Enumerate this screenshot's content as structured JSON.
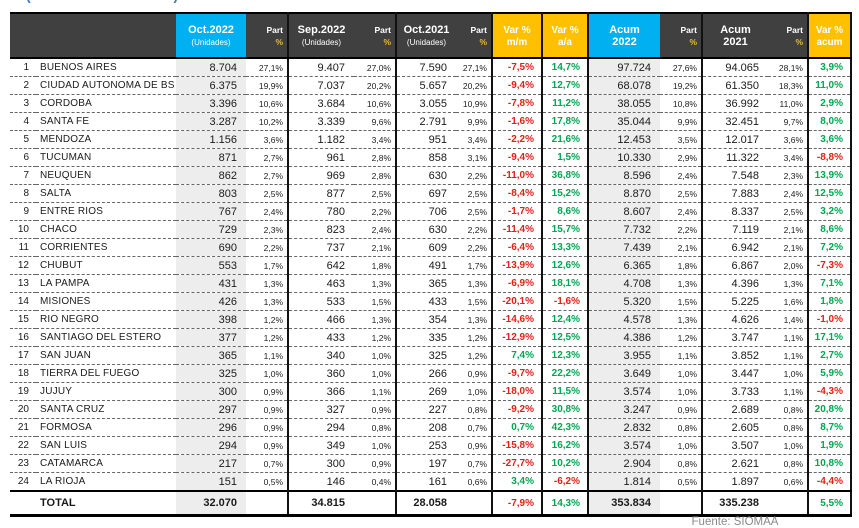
{
  "title_fragment": "( . . . . . . . . . . . . . . )",
  "source_label": "Fuente: SIOMAA",
  "colors": {
    "accent_cyan": "#00B0F0",
    "accent_yellow": "#FFC000",
    "header_dark": "#404040",
    "negative_red": "#E0201B",
    "positive_green": "#00A651",
    "column_shade": "#EDEDED"
  },
  "header": {
    "oct2022": {
      "line1": "Oct.2022",
      "line2": "(Unidades)"
    },
    "sep2022": {
      "line1": "Sep.2022",
      "line2": "(Unidades)"
    },
    "oct2021": {
      "line1": "Oct.2021",
      "line2": "(Unidades)"
    },
    "part": {
      "line1": "Part",
      "line2": "%"
    },
    "var_mm": {
      "line1": "Var %",
      "line2": "m/m"
    },
    "var_aa": {
      "line1": "Var %",
      "line2": "a/a"
    },
    "acum2022": {
      "line1": "Acum",
      "line2": "2022"
    },
    "acum2021": {
      "line1": "Acum",
      "line2": "2021"
    },
    "var_acum": {
      "line1": "Var %",
      "line2": "acum"
    }
  },
  "rows": [
    {
      "rank": "1",
      "name": "BUENOS AIRES",
      "oct22": "8.704",
      "oct22_part": "27,1%",
      "sep22": "9.407",
      "sep22_part": "27,0%",
      "oct21": "7.590",
      "oct21_part": "27,1%",
      "var_mm": "-7,5%",
      "var_aa": "14,7%",
      "acum22": "97.724",
      "acum22_part": "27,6%",
      "acum21": "94.065",
      "acum21_part": "28,1%",
      "var_acum": "3,9%"
    },
    {
      "rank": "2",
      "name": "CIUDAD AUTONOMA DE BS AS",
      "oct22": "6.375",
      "oct22_part": "19,9%",
      "sep22": "7.037",
      "sep22_part": "20,2%",
      "oct21": "5.657",
      "oct21_part": "20,2%",
      "var_mm": "-9,4%",
      "var_aa": "12,7%",
      "acum22": "68.078",
      "acum22_part": "19,2%",
      "acum21": "61.350",
      "acum21_part": "18,3%",
      "var_acum": "11,0%"
    },
    {
      "rank": "3",
      "name": "CORDOBA",
      "oct22": "3.396",
      "oct22_part": "10,6%",
      "sep22": "3.684",
      "sep22_part": "10,6%",
      "oct21": "3.055",
      "oct21_part": "10,9%",
      "var_mm": "-7,8%",
      "var_aa": "11,2%",
      "acum22": "38.055",
      "acum22_part": "10,8%",
      "acum21": "36.992",
      "acum21_part": "11,0%",
      "var_acum": "2,9%"
    },
    {
      "rank": "4",
      "name": "SANTA FE",
      "oct22": "3.287",
      "oct22_part": "10,2%",
      "sep22": "3.339",
      "sep22_part": "9,6%",
      "oct21": "2.791",
      "oct21_part": "9,9%",
      "var_mm": "-1,6%",
      "var_aa": "17,8%",
      "acum22": "35.044",
      "acum22_part": "9,9%",
      "acum21": "32.451",
      "acum21_part": "9,7%",
      "var_acum": "8,0%"
    },
    {
      "rank": "5",
      "name": "MENDOZA",
      "oct22": "1.156",
      "oct22_part": "3,6%",
      "sep22": "1.182",
      "sep22_part": "3,4%",
      "oct21": "951",
      "oct21_part": "3,4%",
      "var_mm": "-2,2%",
      "var_aa": "21,6%",
      "acum22": "12.453",
      "acum22_part": "3,5%",
      "acum21": "12.017",
      "acum21_part": "3,6%",
      "var_acum": "3,6%"
    },
    {
      "rank": "6",
      "name": "TUCUMAN",
      "oct22": "871",
      "oct22_part": "2,7%",
      "sep22": "961",
      "sep22_part": "2,8%",
      "oct21": "858",
      "oct21_part": "3,1%",
      "var_mm": "-9,4%",
      "var_aa": "1,5%",
      "acum22": "10.330",
      "acum22_part": "2,9%",
      "acum21": "11.322",
      "acum21_part": "3,4%",
      "var_acum": "-8,8%"
    },
    {
      "rank": "7",
      "name": "NEUQUEN",
      "oct22": "862",
      "oct22_part": "2,7%",
      "sep22": "969",
      "sep22_part": "2,8%",
      "oct21": "630",
      "oct21_part": "2,2%",
      "var_mm": "-11,0%",
      "var_aa": "36,8%",
      "acum22": "8.596",
      "acum22_part": "2,4%",
      "acum21": "7.548",
      "acum21_part": "2,3%",
      "var_acum": "13,9%"
    },
    {
      "rank": "8",
      "name": "SALTA",
      "oct22": "803",
      "oct22_part": "2,5%",
      "sep22": "877",
      "sep22_part": "2,5%",
      "oct21": "697",
      "oct21_part": "2,5%",
      "var_mm": "-8,4%",
      "var_aa": "15,2%",
      "acum22": "8.870",
      "acum22_part": "2,5%",
      "acum21": "7.883",
      "acum21_part": "2,4%",
      "var_acum": "12,5%"
    },
    {
      "rank": "9",
      "name": "ENTRE RIOS",
      "oct22": "767",
      "oct22_part": "2,4%",
      "sep22": "780",
      "sep22_part": "2,2%",
      "oct21": "706",
      "oct21_part": "2,5%",
      "var_mm": "-1,7%",
      "var_aa": "8,6%",
      "acum22": "8.607",
      "acum22_part": "2,4%",
      "acum21": "8.337",
      "acum21_part": "2,5%",
      "var_acum": "3,2%"
    },
    {
      "rank": "10",
      "name": "CHACO",
      "oct22": "729",
      "oct22_part": "2,3%",
      "sep22": "823",
      "sep22_part": "2,4%",
      "oct21": "630",
      "oct21_part": "2,2%",
      "var_mm": "-11,4%",
      "var_aa": "15,7%",
      "acum22": "7.732",
      "acum22_part": "2,2%",
      "acum21": "7.119",
      "acum21_part": "2,1%",
      "var_acum": "8,6%"
    },
    {
      "rank": "11",
      "name": "CORRIENTES",
      "oct22": "690",
      "oct22_part": "2,2%",
      "sep22": "737",
      "sep22_part": "2,1%",
      "oct21": "609",
      "oct21_part": "2,2%",
      "var_mm": "-6,4%",
      "var_aa": "13,3%",
      "acum22": "7.439",
      "acum22_part": "2,1%",
      "acum21": "6.942",
      "acum21_part": "2,1%",
      "var_acum": "7,2%"
    },
    {
      "rank": "12",
      "name": "CHUBUT",
      "oct22": "553",
      "oct22_part": "1,7%",
      "sep22": "642",
      "sep22_part": "1,8%",
      "oct21": "491",
      "oct21_part": "1,7%",
      "var_mm": "-13,9%",
      "var_aa": "12,6%",
      "acum22": "6.365",
      "acum22_part": "1,8%",
      "acum21": "6.867",
      "acum21_part": "2,0%",
      "var_acum": "-7,3%"
    },
    {
      "rank": "13",
      "name": "LA PAMPA",
      "oct22": "431",
      "oct22_part": "1,3%",
      "sep22": "463",
      "sep22_part": "1,3%",
      "oct21": "365",
      "oct21_part": "1,3%",
      "var_mm": "-6,9%",
      "var_aa": "18,1%",
      "acum22": "4.708",
      "acum22_part": "1,3%",
      "acum21": "4.396",
      "acum21_part": "1,3%",
      "var_acum": "7,1%"
    },
    {
      "rank": "14",
      "name": "MISIONES",
      "oct22": "426",
      "oct22_part": "1,3%",
      "sep22": "533",
      "sep22_part": "1,5%",
      "oct21": "433",
      "oct21_part": "1,5%",
      "var_mm": "-20,1%",
      "var_aa": "-1,6%",
      "acum22": "5.320",
      "acum22_part": "1,5%",
      "acum21": "5.225",
      "acum21_part": "1,6%",
      "var_acum": "1,8%"
    },
    {
      "rank": "15",
      "name": "RIO NEGRO",
      "oct22": "398",
      "oct22_part": "1,2%",
      "sep22": "466",
      "sep22_part": "1,3%",
      "oct21": "354",
      "oct21_part": "1,3%",
      "var_mm": "-14,6%",
      "var_aa": "12,4%",
      "acum22": "4.578",
      "acum22_part": "1,3%",
      "acum21": "4.626",
      "acum21_part": "1,4%",
      "var_acum": "-1,0%"
    },
    {
      "rank": "16",
      "name": "SANTIAGO DEL ESTERO",
      "oct22": "377",
      "oct22_part": "1,2%",
      "sep22": "433",
      "sep22_part": "1,2%",
      "oct21": "335",
      "oct21_part": "1,2%",
      "var_mm": "-12,9%",
      "var_aa": "12,5%",
      "acum22": "4.386",
      "acum22_part": "1,2%",
      "acum21": "3.747",
      "acum21_part": "1,1%",
      "var_acum": "17,1%"
    },
    {
      "rank": "17",
      "name": "SAN JUAN",
      "oct22": "365",
      "oct22_part": "1,1%",
      "sep22": "340",
      "sep22_part": "1,0%",
      "oct21": "325",
      "oct21_part": "1,2%",
      "var_mm": "7,4%",
      "var_aa": "12,3%",
      "acum22": "3.955",
      "acum22_part": "1,1%",
      "acum21": "3.852",
      "acum21_part": "1,1%",
      "var_acum": "2,7%"
    },
    {
      "rank": "18",
      "name": "TIERRA DEL FUEGO",
      "oct22": "325",
      "oct22_part": "1,0%",
      "sep22": "360",
      "sep22_part": "1,0%",
      "oct21": "266",
      "oct21_part": "0,9%",
      "var_mm": "-9,7%",
      "var_aa": "22,2%",
      "acum22": "3.649",
      "acum22_part": "1,0%",
      "acum21": "3.447",
      "acum21_part": "1,0%",
      "var_acum": "5,9%"
    },
    {
      "rank": "19",
      "name": "JUJUY",
      "oct22": "300",
      "oct22_part": "0,9%",
      "sep22": "366",
      "sep22_part": "1,1%",
      "oct21": "269",
      "oct21_part": "1,0%",
      "var_mm": "-18,0%",
      "var_aa": "11,5%",
      "acum22": "3.574",
      "acum22_part": "1,0%",
      "acum21": "3.733",
      "acum21_part": "1,1%",
      "var_acum": "-4,3%"
    },
    {
      "rank": "20",
      "name": "SANTA CRUZ",
      "oct22": "297",
      "oct22_part": "0,9%",
      "sep22": "327",
      "sep22_part": "0,9%",
      "oct21": "227",
      "oct21_part": "0,8%",
      "var_mm": "-9,2%",
      "var_aa": "30,8%",
      "acum22": "3.247",
      "acum22_part": "0,9%",
      "acum21": "2.689",
      "acum21_part": "0,8%",
      "var_acum": "20,8%"
    },
    {
      "rank": "21",
      "name": "FORMOSA",
      "oct22": "296",
      "oct22_part": "0,9%",
      "sep22": "294",
      "sep22_part": "0,8%",
      "oct21": "208",
      "oct21_part": "0,7%",
      "var_mm": "0,7%",
      "var_aa": "42,3%",
      "acum22": "2.832",
      "acum22_part": "0,8%",
      "acum21": "2.605",
      "acum21_part": "0,8%",
      "var_acum": "8,7%"
    },
    {
      "rank": "22",
      "name": "SAN LUIS",
      "oct22": "294",
      "oct22_part": "0,9%",
      "sep22": "349",
      "sep22_part": "1,0%",
      "oct21": "253",
      "oct21_part": "0,9%",
      "var_mm": "-15,8%",
      "var_aa": "16,2%",
      "acum22": "3.574",
      "acum22_part": "1,0%",
      "acum21": "3.507",
      "acum21_part": "1,0%",
      "var_acum": "1,9%"
    },
    {
      "rank": "23",
      "name": "CATAMARCA",
      "oct22": "217",
      "oct22_part": "0,7%",
      "sep22": "300",
      "sep22_part": "0,9%",
      "oct21": "197",
      "oct21_part": "0,7%",
      "var_mm": "-27,7%",
      "var_aa": "10,2%",
      "acum22": "2.904",
      "acum22_part": "0,8%",
      "acum21": "2.621",
      "acum21_part": "0,8%",
      "var_acum": "10,8%"
    },
    {
      "rank": "24",
      "name": "LA RIOJA",
      "oct22": "151",
      "oct22_part": "0,5%",
      "sep22": "146",
      "sep22_part": "0,4%",
      "oct21": "161",
      "oct21_part": "0,6%",
      "var_mm": "3,4%",
      "var_aa": "-6,2%",
      "acum22": "1.814",
      "acum22_part": "0,5%",
      "acum21": "1.897",
      "acum21_part": "0,6%",
      "var_acum": "-4,4%"
    }
  ],
  "total": {
    "label": "TOTAL",
    "oct22": "32.070",
    "sep22": "34.815",
    "oct21": "28.058",
    "var_mm": "-7,9%",
    "var_aa": "14,3%",
    "acum22": "353.834",
    "acum21": "335.238",
    "var_acum": "5,5%"
  }
}
